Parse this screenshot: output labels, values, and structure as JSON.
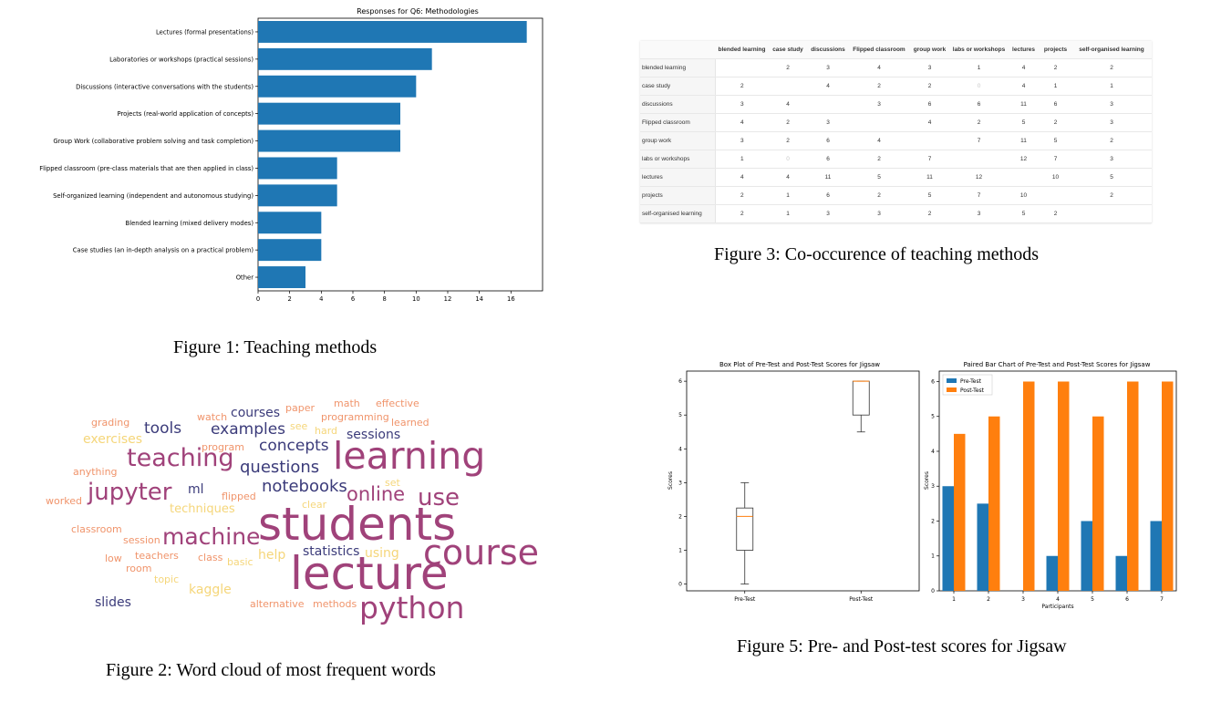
{
  "figure1": {
    "caption": "Figure 1: Teaching methods",
    "chart_data": {
      "type": "bar",
      "orientation": "horizontal",
      "title": "Responses for Q6: Methodologies",
      "categories": [
        "Lectures (formal presentations)",
        "Laboratories or workshops (practical sessions)",
        "Discussions (interactive conversations with the students)",
        "Projects (real-world application of concepts)",
        "Group Work (collaborative problem solving and task completion)",
        "Flipped classroom (pre-class materials that are then applied in class)",
        "Self-organized learning (independent and autonomous studying)",
        "Blended learning (mixed delivery modes)",
        "Case studies (an in-depth analysis on a practical problem)",
        "Other"
      ],
      "values": [
        17,
        11,
        10,
        9,
        9,
        5,
        5,
        4,
        4,
        3
      ],
      "xlim": [
        0,
        18
      ],
      "xticks": [
        0,
        2,
        4,
        6,
        8,
        10,
        12,
        14,
        16
      ],
      "color": "#1f77b4"
    }
  },
  "figure2": {
    "caption": "Figure 2: Word cloud of most frequent words",
    "words": [
      {
        "text": "students",
        "color": "#a0427a"
      },
      {
        "text": "lecture",
        "color": "#a0427a"
      },
      {
        "text": "learning",
        "color": "#a0427a"
      },
      {
        "text": "course",
        "color": "#a0427a"
      },
      {
        "text": "python",
        "color": "#a0427a"
      },
      {
        "text": "teaching",
        "color": "#a0427a"
      },
      {
        "text": "machine",
        "color": "#a0427a"
      },
      {
        "text": "jupyter",
        "color": "#a0427a"
      },
      {
        "text": "use",
        "color": "#a0427a"
      },
      {
        "text": "online",
        "color": "#a0427a"
      },
      {
        "text": "notebooks",
        "color": "#3b3b7a"
      },
      {
        "text": "questions",
        "color": "#3b3b7a"
      },
      {
        "text": "concepts",
        "color": "#3b3b7a"
      },
      {
        "text": "examples",
        "color": "#3b3b7a"
      },
      {
        "text": "tools",
        "color": "#3b3b7a"
      },
      {
        "text": "courses",
        "color": "#3b3b7a"
      },
      {
        "text": "sessions",
        "color": "#3b3b7a"
      },
      {
        "text": "statistics",
        "color": "#3b3b7a"
      },
      {
        "text": "ml",
        "color": "#3b3b7a"
      },
      {
        "text": "slides",
        "color": "#3b3b7a"
      },
      {
        "text": "help",
        "color": "#f5d67a"
      },
      {
        "text": "using",
        "color": "#f5d67a"
      },
      {
        "text": "kaggle",
        "color": "#f5d67a"
      },
      {
        "text": "exercises",
        "color": "#f5d67a"
      },
      {
        "text": "techniques",
        "color": "#f5d67a"
      },
      {
        "text": "topic",
        "color": "#f5d67a"
      },
      {
        "text": "basic",
        "color": "#f5d67a"
      },
      {
        "text": "set",
        "color": "#f5d67a"
      },
      {
        "text": "see",
        "color": "#f5d67a"
      },
      {
        "text": "hard",
        "color": "#f5d67a"
      },
      {
        "text": "clear",
        "color": "#f5d67a"
      },
      {
        "text": "grading",
        "color": "#f0946b"
      },
      {
        "text": "watch",
        "color": "#f0946b"
      },
      {
        "text": "paper",
        "color": "#f0946b"
      },
      {
        "text": "math",
        "color": "#f0946b"
      },
      {
        "text": "effective",
        "color": "#f0946b"
      },
      {
        "text": "programming",
        "color": "#f0946b"
      },
      {
        "text": "learned",
        "color": "#f0946b"
      },
      {
        "text": "program",
        "color": "#f0946b"
      },
      {
        "text": "anything",
        "color": "#f0946b"
      },
      {
        "text": "worked",
        "color": "#f0946b"
      },
      {
        "text": "flipped",
        "color": "#f0946b"
      },
      {
        "text": "classroom",
        "color": "#f0946b"
      },
      {
        "text": "session",
        "color": "#f0946b"
      },
      {
        "text": "low",
        "color": "#f0946b"
      },
      {
        "text": "teachers",
        "color": "#f0946b"
      },
      {
        "text": "class",
        "color": "#f0946b"
      },
      {
        "text": "room",
        "color": "#f0946b"
      },
      {
        "text": "alternative",
        "color": "#f0946b"
      },
      {
        "text": "methods",
        "color": "#f0946b"
      }
    ]
  },
  "figure3": {
    "caption": "Figure 3: Co-occurence of teaching methods",
    "columns": [
      "blended learning",
      "case study",
      "discussions",
      "Flipped classroom",
      "group work",
      "labs or workshops",
      "lectures",
      "projects",
      "self-organised learning"
    ],
    "rows": [
      {
        "label": "blended learning",
        "cells": [
          "",
          "2",
          "3",
          "4",
          "3",
          "1",
          "4",
          "2",
          "2"
        ]
      },
      {
        "label": "case study",
        "cells": [
          "2",
          "",
          "4",
          "2",
          "2",
          "0",
          "4",
          "1",
          "1"
        ]
      },
      {
        "label": "discussions",
        "cells": [
          "3",
          "4",
          "",
          "3",
          "6",
          "6",
          "11",
          "6",
          "3"
        ]
      },
      {
        "label": "Flipped classroom",
        "cells": [
          "4",
          "2",
          "3",
          "",
          "4",
          "2",
          "5",
          "2",
          "3"
        ]
      },
      {
        "label": "group work",
        "cells": [
          "3",
          "2",
          "6",
          "4",
          "",
          "7",
          "11",
          "5",
          "2"
        ]
      },
      {
        "label": "labs or workshops",
        "cells": [
          "1",
          "0",
          "6",
          "2",
          "7",
          "",
          "12",
          "7",
          "3"
        ]
      },
      {
        "label": "lectures",
        "cells": [
          "4",
          "4",
          "11",
          "5",
          "11",
          "12",
          "",
          "10",
          "5"
        ]
      },
      {
        "label": "projects",
        "cells": [
          "2",
          "1",
          "6",
          "2",
          "5",
          "7",
          "10",
          "",
          "2"
        ]
      },
      {
        "label": "self-organised learning",
        "cells": [
          "2",
          "1",
          "3",
          "3",
          "2",
          "3",
          "5",
          "2",
          ""
        ]
      }
    ]
  },
  "figure5": {
    "caption": "Figure 5: Pre- and Post-test scores for Jigsaw",
    "chart_data": [
      {
        "type": "box",
        "title": "Box Plot of Pre-Test and Post-Test Scores for Jigsaw",
        "ylabel": "Scores",
        "categories": [
          "Pre-Test",
          "Post-Test"
        ],
        "boxes": [
          {
            "min": 0,
            "q1": 1,
            "median": 2,
            "q3": 2.25,
            "max": 3
          },
          {
            "min": 4.5,
            "q1": 5,
            "median": 6,
            "q3": 6,
            "max": 6
          }
        ],
        "ylim": [
          -0.2,
          6.3
        ],
        "yticks": [
          0,
          1,
          2,
          3,
          4,
          5,
          6
        ]
      },
      {
        "type": "bar",
        "title": "Paired Bar Chart of Pre-Test and Post-Test Scores for Jigsaw",
        "xlabel": "Participants",
        "ylabel": "Scores",
        "categories": [
          "1",
          "2",
          "3",
          "4",
          "5",
          "6",
          "7"
        ],
        "series": [
          {
            "name": "Pre-Test",
            "color": "#1f77b4",
            "values": [
              3,
              2.5,
              0,
              1,
              2,
              1,
              2
            ]
          },
          {
            "name": "Post-Test",
            "color": "#ff7f0e",
            "values": [
              4.5,
              5,
              6,
              6,
              5,
              6,
              6
            ]
          }
        ],
        "ylim": [
          0,
          6.3
        ],
        "yticks": [
          0,
          1,
          2,
          3,
          4,
          5,
          6
        ],
        "legend": "top-left"
      }
    ]
  }
}
